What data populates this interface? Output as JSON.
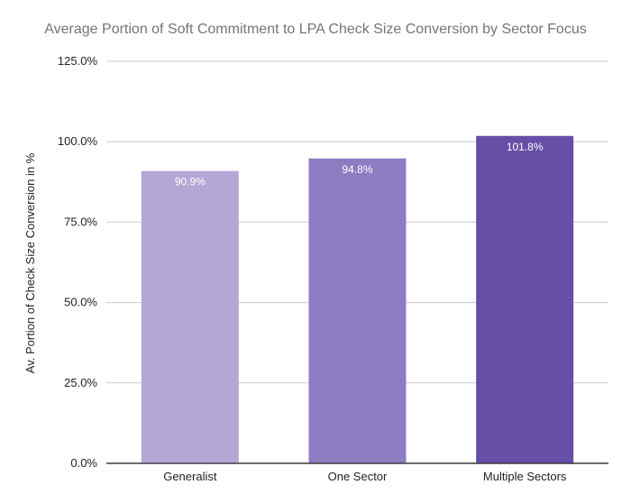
{
  "chart_data": {
    "type": "bar",
    "title": "Average Portion of Soft Commitment to LPA Check Size Conversion by Sector Focus",
    "xlabel": "",
    "ylabel": "Av. Portion of Check Size Conversion in %",
    "categories": [
      "Generalist",
      "One Sector",
      "Multiple Sectors"
    ],
    "values": [
      90.9,
      94.8,
      101.8
    ],
    "value_labels": [
      "90.9%",
      "94.8%",
      "101.8%"
    ],
    "colors": [
      "#b4a7d6",
      "#8e7cc3",
      "#674ea7"
    ],
    "ylim": [
      0,
      125
    ],
    "y_ticks": [
      0,
      25,
      50,
      75,
      100,
      125
    ],
    "y_tick_labels": [
      "0.0%",
      "25.0%",
      "50.0%",
      "75.0%",
      "100.0%",
      "125.0%"
    ],
    "grid": true,
    "grid_color": "#cccccc",
    "axis_color": "#333333",
    "legend": "none"
  }
}
